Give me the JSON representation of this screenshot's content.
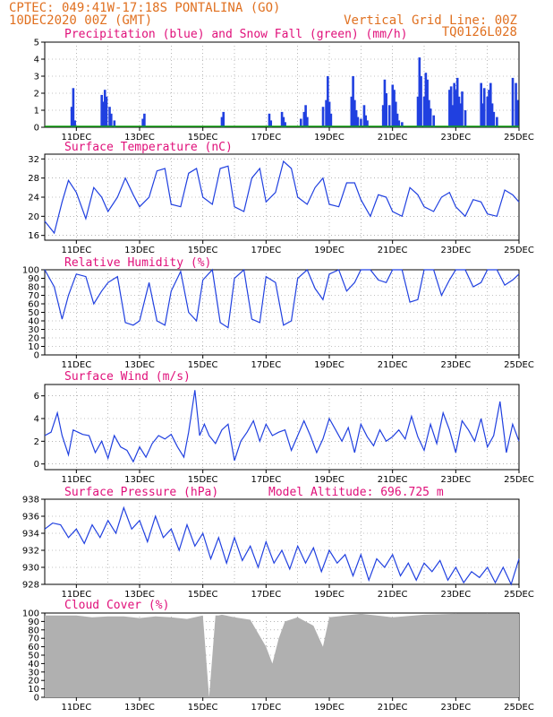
{
  "header": {
    "line1_left": "CPTEC:   049:41W-17:18S   PONTALINA (GO)",
    "line2_left": "10DEC2020 00Z (GMT)",
    "line1_right": "Vertical Grid Line: 00Z",
    "line2_right": "TQ0126L028"
  },
  "colors": {
    "blue": "#2040e0",
    "green": "#10a010",
    "gray": "#b0b0b0",
    "title": "#e0107a",
    "header": "#e07020"
  },
  "x_ticks": [
    "11DEC",
    "13DEC",
    "15DEC",
    "17DEC",
    "19DEC",
    "21DEC",
    "23DEC",
    "25DEC"
  ],
  "chart_data": [
    {
      "type": "bar",
      "title": "Precipitation (blue) and Snow Fall (green) (mm/h)",
      "ylim": [
        0,
        5
      ],
      "yticks": [
        "0",
        "1",
        "2",
        "3",
        "4",
        "5"
      ],
      "series": [
        {
          "name": "Precipitation",
          "x": [
            0.85,
            0.9,
            0.95,
            1.8,
            1.85,
            1.9,
            1.95,
            2.05,
            2.1,
            2.2,
            3.1,
            3.15,
            5.6,
            5.65,
            7.1,
            7.15,
            7.5,
            7.55,
            7.6,
            8.1,
            8.2,
            8.25,
            8.3,
            8.8,
            8.9,
            8.95,
            9.0,
            9.05,
            9.7,
            9.75,
            9.8,
            9.85,
            9.9,
            10.0,
            10.1,
            10.15,
            10.2,
            10.7,
            10.75,
            10.8,
            10.9,
            11.0,
            11.05,
            11.1,
            11.15,
            11.2,
            11.3,
            11.8,
            11.85,
            11.9,
            12.0,
            12.05,
            12.1,
            12.15,
            12.2,
            12.3,
            12.8,
            12.85,
            12.9,
            12.95,
            13.0,
            13.05,
            13.1,
            13.15,
            13.2,
            13.3,
            13.8,
            13.85,
            13.9,
            14.0,
            14.05,
            14.1,
            14.15,
            14.2,
            14.3,
            14.8,
            14.9,
            14.95
          ],
          "values": [
            1.2,
            2.3,
            0.4,
            1.9,
            1.5,
            2.2,
            1.8,
            1.2,
            0.8,
            0.4,
            0.5,
            0.8,
            0.6,
            0.9,
            0.8,
            0.4,
            0.9,
            0.6,
            0.3,
            0.5,
            0.9,
            1.3,
            0.6,
            1.2,
            1.6,
            3.0,
            1.5,
            0.8,
            1.8,
            3.0,
            1.6,
            1.0,
            0.6,
            0.5,
            1.3,
            0.7,
            0.4,
            1.3,
            2.8,
            2.0,
            1.3,
            2.5,
            2.2,
            1.5,
            0.8,
            0.4,
            0.3,
            1.8,
            4.1,
            3.0,
            1.8,
            3.2,
            2.8,
            1.6,
            1.1,
            0.7,
            2.2,
            2.4,
            1.3,
            2.6,
            2.2,
            2.9,
            1.8,
            1.4,
            2.1,
            1.0,
            2.6,
            1.4,
            2.3,
            1.8,
            2.2,
            2.6,
            1.4,
            0.9,
            0.6,
            2.9,
            2.6,
            1.6
          ]
        },
        {
          "name": "Snow Fall",
          "x": [
            0,
            15
          ],
          "values": [
            0.05,
            0.05
          ]
        }
      ]
    },
    {
      "type": "line",
      "title": "Surface Temperature (nC)",
      "ylim": [
        15,
        33
      ],
      "yticks": [
        "16",
        "20",
        "24",
        "28",
        "32"
      ],
      "x": [
        0,
        0.3,
        0.55,
        0.75,
        1.0,
        1.3,
        1.55,
        1.8,
        2.0,
        2.3,
        2.55,
        2.8,
        3.0,
        3.3,
        3.55,
        3.8,
        4.0,
        4.3,
        4.55,
        4.8,
        5.0,
        5.3,
        5.55,
        5.8,
        6.0,
        6.3,
        6.55,
        6.8,
        7.0,
        7.3,
        7.55,
        7.8,
        8.0,
        8.3,
        8.55,
        8.8,
        9.0,
        9.3,
        9.55,
        9.8,
        10.0,
        10.3,
        10.55,
        10.8,
        11.0,
        11.3,
        11.55,
        11.8,
        12.0,
        12.3,
        12.55,
        12.8,
        13.0,
        13.3,
        13.55,
        13.8,
        14.0,
        14.3,
        14.55,
        14.8,
        15.0
      ],
      "values": [
        19,
        16.5,
        23,
        27.5,
        25,
        19.5,
        26,
        24,
        21,
        24,
        28,
        24.5,
        22,
        24,
        29.5,
        30,
        22.5,
        22,
        29,
        30,
        24,
        22.5,
        30,
        30.5,
        22,
        21,
        28,
        30,
        23,
        25,
        31.5,
        30,
        24,
        22.5,
        26,
        28,
        22.5,
        22,
        27,
        27,
        23.5,
        20,
        24.5,
        24,
        21,
        20,
        26,
        24.5,
        22,
        21,
        24,
        25,
        22,
        20,
        23.5,
        23,
        20.5,
        20,
        25.5,
        24.5,
        23
      ]
    },
    {
      "type": "line",
      "title": "Relative Humidity (%)",
      "ylim": [
        0,
        100
      ],
      "yticks": [
        "0",
        "10",
        "20",
        "30",
        "40",
        "50",
        "60",
        "70",
        "80",
        "90",
        "100"
      ],
      "x": [
        0,
        0.3,
        0.55,
        0.75,
        1.0,
        1.3,
        1.55,
        1.8,
        2.0,
        2.3,
        2.55,
        2.8,
        3.0,
        3.3,
        3.55,
        3.8,
        4.0,
        4.3,
        4.55,
        4.8,
        5.0,
        5.3,
        5.55,
        5.8,
        6.0,
        6.3,
        6.55,
        6.8,
        7.0,
        7.3,
        7.55,
        7.8,
        8.0,
        8.3,
        8.55,
        8.8,
        9.0,
        9.3,
        9.55,
        9.8,
        10.0,
        10.3,
        10.55,
        10.8,
        11.0,
        11.3,
        11.55,
        11.8,
        12.0,
        12.3,
        12.55,
        12.8,
        13.0,
        13.3,
        13.55,
        13.8,
        14.0,
        14.3,
        14.55,
        14.8,
        15.0
      ],
      "values": [
        100,
        80,
        42,
        70,
        95,
        92,
        60,
        75,
        85,
        92,
        38,
        35,
        40,
        85,
        40,
        35,
        75,
        98,
        50,
        40,
        88,
        100,
        38,
        32,
        90,
        100,
        42,
        38,
        92,
        85,
        35,
        40,
        90,
        100,
        78,
        65,
        95,
        100,
        75,
        85,
        100,
        100,
        88,
        85,
        100,
        100,
        62,
        65,
        100,
        100,
        70,
        88,
        100,
        100,
        80,
        85,
        100,
        100,
        82,
        88,
        95
      ]
    },
    {
      "type": "line",
      "title": "Surface Wind (m/s)",
      "ylim": [
        -0.5,
        7
      ],
      "yticks": [
        "0",
        "2",
        "4",
        "6"
      ],
      "x": [
        0,
        0.2,
        0.4,
        0.55,
        0.75,
        0.9,
        1.05,
        1.2,
        1.4,
        1.6,
        1.8,
        2.0,
        2.2,
        2.4,
        2.6,
        2.8,
        3.0,
        3.2,
        3.4,
        3.6,
        3.8,
        4.0,
        4.2,
        4.4,
        4.55,
        4.75,
        4.9,
        5.05,
        5.2,
        5.4,
        5.6,
        5.8,
        6.0,
        6.2,
        6.4,
        6.6,
        6.8,
        7.0,
        7.2,
        7.4,
        7.6,
        7.8,
        8.0,
        8.2,
        8.4,
        8.6,
        8.8,
        9.0,
        9.2,
        9.4,
        9.6,
        9.8,
        10.0,
        10.2,
        10.4,
        10.6,
        10.8,
        11.0,
        11.2,
        11.4,
        11.6,
        11.8,
        12.0,
        12.2,
        12.4,
        12.6,
        12.8,
        13.0,
        13.2,
        13.4,
        13.6,
        13.8,
        14.0,
        14.2,
        14.4,
        14.6,
        14.8,
        15.0
      ],
      "values": [
        2.5,
        2.8,
        4.5,
        2.5,
        0.8,
        3.0,
        2.8,
        2.6,
        2.5,
        1.0,
        2.0,
        0.5,
        2.5,
        1.5,
        1.2,
        0.2,
        1.5,
        0.6,
        1.8,
        2.5,
        2.2,
        2.6,
        1.5,
        0.6,
        2.8,
        6.5,
        2.5,
        3.5,
        2.5,
        1.8,
        3.0,
        3.5,
        0.3,
        2.0,
        2.8,
        3.8,
        2.0,
        3.5,
        2.5,
        2.8,
        3.0,
        1.2,
        2.5,
        3.8,
        2.5,
        1.0,
        2.2,
        4.0,
        3.0,
        2.0,
        3.2,
        1.0,
        3.5,
        2.4,
        1.6,
        3.0,
        2.0,
        2.4,
        3.0,
        2.2,
        4.2,
        2.4,
        1.2,
        3.5,
        1.8,
        4.5,
        3.0,
        1.0,
        3.8,
        3.0,
        2.0,
        4.0,
        1.5,
        2.5,
        5.5,
        1.0,
        3.5,
        2.0
      ]
    },
    {
      "type": "line",
      "title": "Surface Pressure (hPa)",
      "annotation": "Model Altitude: 696.725  m",
      "ylim": [
        928,
        938
      ],
      "yticks": [
        "928",
        "930",
        "932",
        "934",
        "936",
        "938"
      ],
      "x": [
        0,
        0.25,
        0.5,
        0.75,
        1.0,
        1.25,
        1.5,
        1.75,
        2.0,
        2.25,
        2.5,
        2.75,
        3.0,
        3.25,
        3.5,
        3.75,
        4.0,
        4.25,
        4.5,
        4.75,
        5.0,
        5.25,
        5.5,
        5.75,
        6.0,
        6.25,
        6.5,
        6.75,
        7.0,
        7.25,
        7.5,
        7.75,
        8.0,
        8.25,
        8.5,
        8.75,
        9.0,
        9.25,
        9.5,
        9.75,
        10.0,
        10.25,
        10.5,
        10.75,
        11.0,
        11.25,
        11.5,
        11.75,
        12.0,
        12.25,
        12.5,
        12.75,
        13.0,
        13.25,
        13.5,
        13.75,
        14.0,
        14.25,
        14.5,
        14.75,
        15.0
      ],
      "values": [
        934.5,
        935.2,
        935,
        933.5,
        934.5,
        932.8,
        935,
        933.5,
        935.5,
        934,
        937,
        934.5,
        935.5,
        933,
        936,
        933.5,
        934.5,
        932,
        935,
        932.5,
        934,
        931,
        933.5,
        930.5,
        933.5,
        930.8,
        932.5,
        930,
        933,
        930.5,
        932,
        929.8,
        932.5,
        930.5,
        932.3,
        929.5,
        932,
        930.5,
        931.5,
        929,
        931.5,
        928.5,
        931,
        930,
        931.5,
        929,
        930.5,
        928.5,
        930.5,
        929.5,
        930.8,
        928.5,
        930,
        928.2,
        929.5,
        928.8,
        930,
        928.2,
        930,
        928,
        931
      ]
    },
    {
      "type": "area",
      "title": "Cloud Cover (%)",
      "ylim": [
        0,
        100
      ],
      "yticks": [
        "0",
        "10",
        "20",
        "30",
        "40",
        "50",
        "60",
        "70",
        "80",
        "90",
        "100"
      ],
      "x": [
        0,
        0.5,
        1.0,
        1.5,
        2.0,
        2.5,
        3.0,
        3.5,
        4.0,
        4.5,
        5.0,
        5.2,
        5.4,
        5.5,
        5.6,
        6.0,
        6.5,
        7.0,
        7.2,
        7.4,
        7.6,
        8.0,
        8.5,
        8.8,
        9.0,
        10.0,
        10.5,
        11.0,
        12.0,
        13.0,
        14.0,
        15.0
      ],
      "values": [
        97,
        97,
        97,
        95,
        96,
        96,
        94,
        96,
        95,
        93,
        97,
        0,
        97,
        97,
        98,
        95,
        92,
        60,
        40,
        70,
        90,
        95,
        85,
        60,
        95,
        99,
        97,
        95,
        98,
        99,
        99,
        99
      ]
    }
  ]
}
